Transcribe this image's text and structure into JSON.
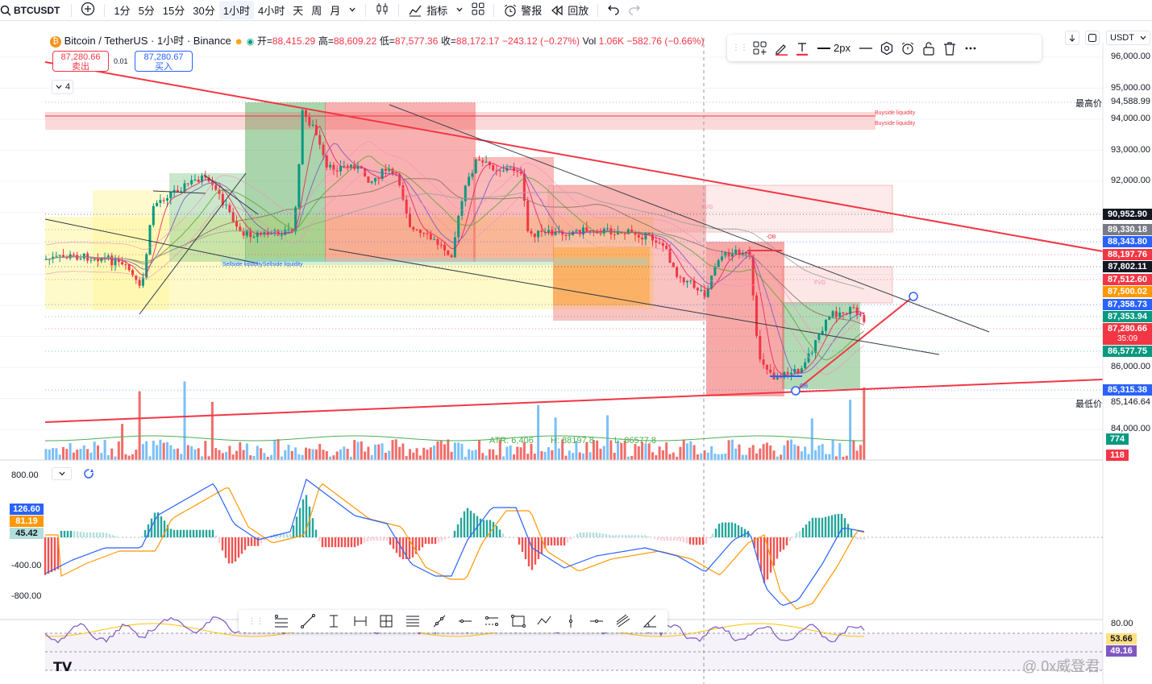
{
  "toolbar": {
    "symbol": "BTCUSDT",
    "intervals": [
      "1分",
      "5分",
      "15分",
      "30分",
      "1小时",
      "4小时",
      "天",
      "周",
      "月"
    ],
    "active_interval": "1小时",
    "indicators_label": "指标",
    "alert_label": "警报",
    "replay_label": "回放"
  },
  "legend": {
    "title": "Bitcoin / TetherUS · 1小时 · Binance",
    "open_label": "开=",
    "open": "88,415.29",
    "high_label": "高=",
    "high": "88,609.22",
    "low_label": "低=",
    "low": "87,577.36",
    "close_label": "收=",
    "close": "88,172.17",
    "change": "−243.12 (−0.27%)",
    "vol_label": "Vol",
    "vol": "1.06K",
    "vol_change": "−582.76 (−0.66%)",
    "sell_price": "87,280.66",
    "sell_label": "卖出",
    "spread": "0.01",
    "buy_price": "87,280.67",
    "buy_label": "买入",
    "indicators_count": "4"
  },
  "drawing_toolbar": {
    "width_label": "2px"
  },
  "currency": "USDT",
  "price_axis": {
    "ticks": [
      "96,000.00",
      "95,000.00",
      "94,000.00",
      "93,000.00",
      "92,000.00",
      "86,000.00",
      "84,000.00"
    ],
    "high_label": "最高价",
    "high_value": "94,588.99",
    "low_label": "最低价",
    "low_value": "85,146.64",
    "tags": [
      {
        "value": "90,952.90",
        "color": "#131722"
      },
      {
        "value": "89,330.18",
        "color": "#787b86"
      },
      {
        "value": "88,343.80",
        "color": "#2962ff"
      },
      {
        "value": "88,197.76",
        "color": "#f23645"
      },
      {
        "value": "87,802.11",
        "color": "#131722"
      },
      {
        "value": "87,512.60",
        "color": "#f23645"
      },
      {
        "value": "87,500.02",
        "color": "#ff9800"
      },
      {
        "value": "87,358.73",
        "color": "#2962ff"
      },
      {
        "value": "87,353.94",
        "color": "#089981"
      },
      {
        "value": "87,280.66",
        "color": "#f23645"
      },
      {
        "value": "35:09",
        "color": "#f23645"
      },
      {
        "value": "86,577.75",
        "color": "#089981"
      },
      {
        "value": "85,315.38",
        "color": "#2962ff"
      }
    ],
    "volume_tags": [
      {
        "value": "774",
        "color": "#089981"
      },
      {
        "value": "118",
        "color": "#f23645"
      }
    ]
  },
  "annotations": {
    "buyside1": "Buyside liquidity",
    "buyside2": "Buyside liquidity",
    "sellside": "Sellside liquiditySellside liquidity",
    "fvg1": "FVG",
    "fvg2": "FVG",
    "ob1": "-OB",
    "ob2": "OB",
    "atr": "ATR: 6,406",
    "hval": "H: 88197.8",
    "lval": "L: 86577.8"
  },
  "macd_axis": {
    "ticks": [
      "800.00",
      "-400.00",
      "-800.00"
    ],
    "tags": [
      {
        "value": "126.60",
        "color": "#2962ff"
      },
      {
        "value": "81.19",
        "color": "#ff9800"
      },
      {
        "value": "45.42",
        "color": "#b2dfdb"
      }
    ]
  },
  "rsi_axis": {
    "ticks": [
      "80.00"
    ],
    "tags": [
      {
        "value": "53.66",
        "color": "#ffe082"
      },
      {
        "value": "49.16",
        "color": "#7e57c2"
      }
    ]
  },
  "watermark": "@ 0x威登君",
  "logo": "TV",
  "colors": {
    "up": "#089981",
    "down": "#f23645",
    "accent": "#2962ff"
  }
}
